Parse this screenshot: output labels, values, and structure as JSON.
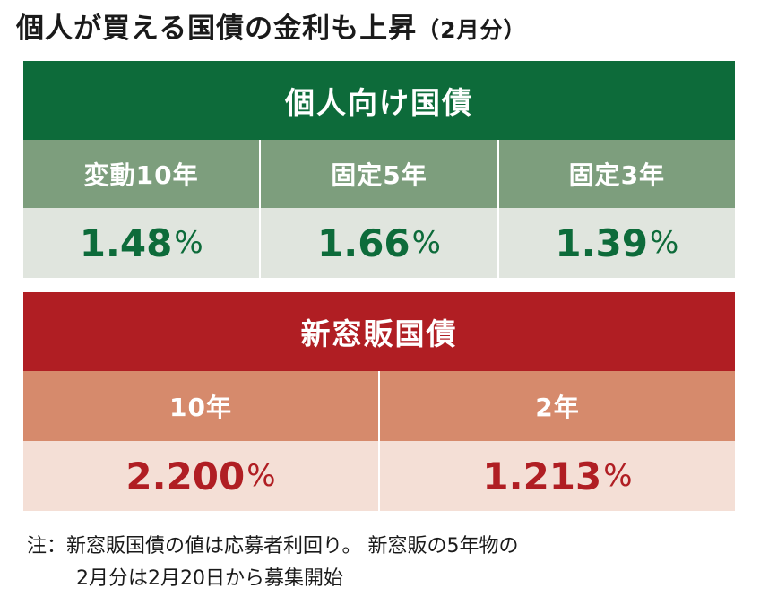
{
  "title": {
    "main": "個人が買える国債の金利も上昇",
    "sub": "（2月分）"
  },
  "chart_data": {
    "type": "table",
    "groups": [
      {
        "name": "個人向け国債",
        "color": "#0d6b3a",
        "items": [
          {
            "label": "変動10年",
            "value": 1.48,
            "display": "1.48"
          },
          {
            "label": "固定5年",
            "value": 1.66,
            "display": "1.66"
          },
          {
            "label": "固定3年",
            "value": 1.39,
            "display": "1.39"
          }
        ]
      },
      {
        "name": "新窓販国債",
        "color": "#b01e23",
        "items": [
          {
            "label": "10年",
            "value": 2.2,
            "display": "2.200"
          },
          {
            "label": "2年",
            "value": 1.213,
            "display": "1.213"
          }
        ]
      }
    ],
    "unit": "%"
  },
  "note": {
    "line1": "注：新窓販国債の値は応募者利回り。 新窓販の5年物の",
    "line2": "2月分は2月20日から募集開始"
  }
}
